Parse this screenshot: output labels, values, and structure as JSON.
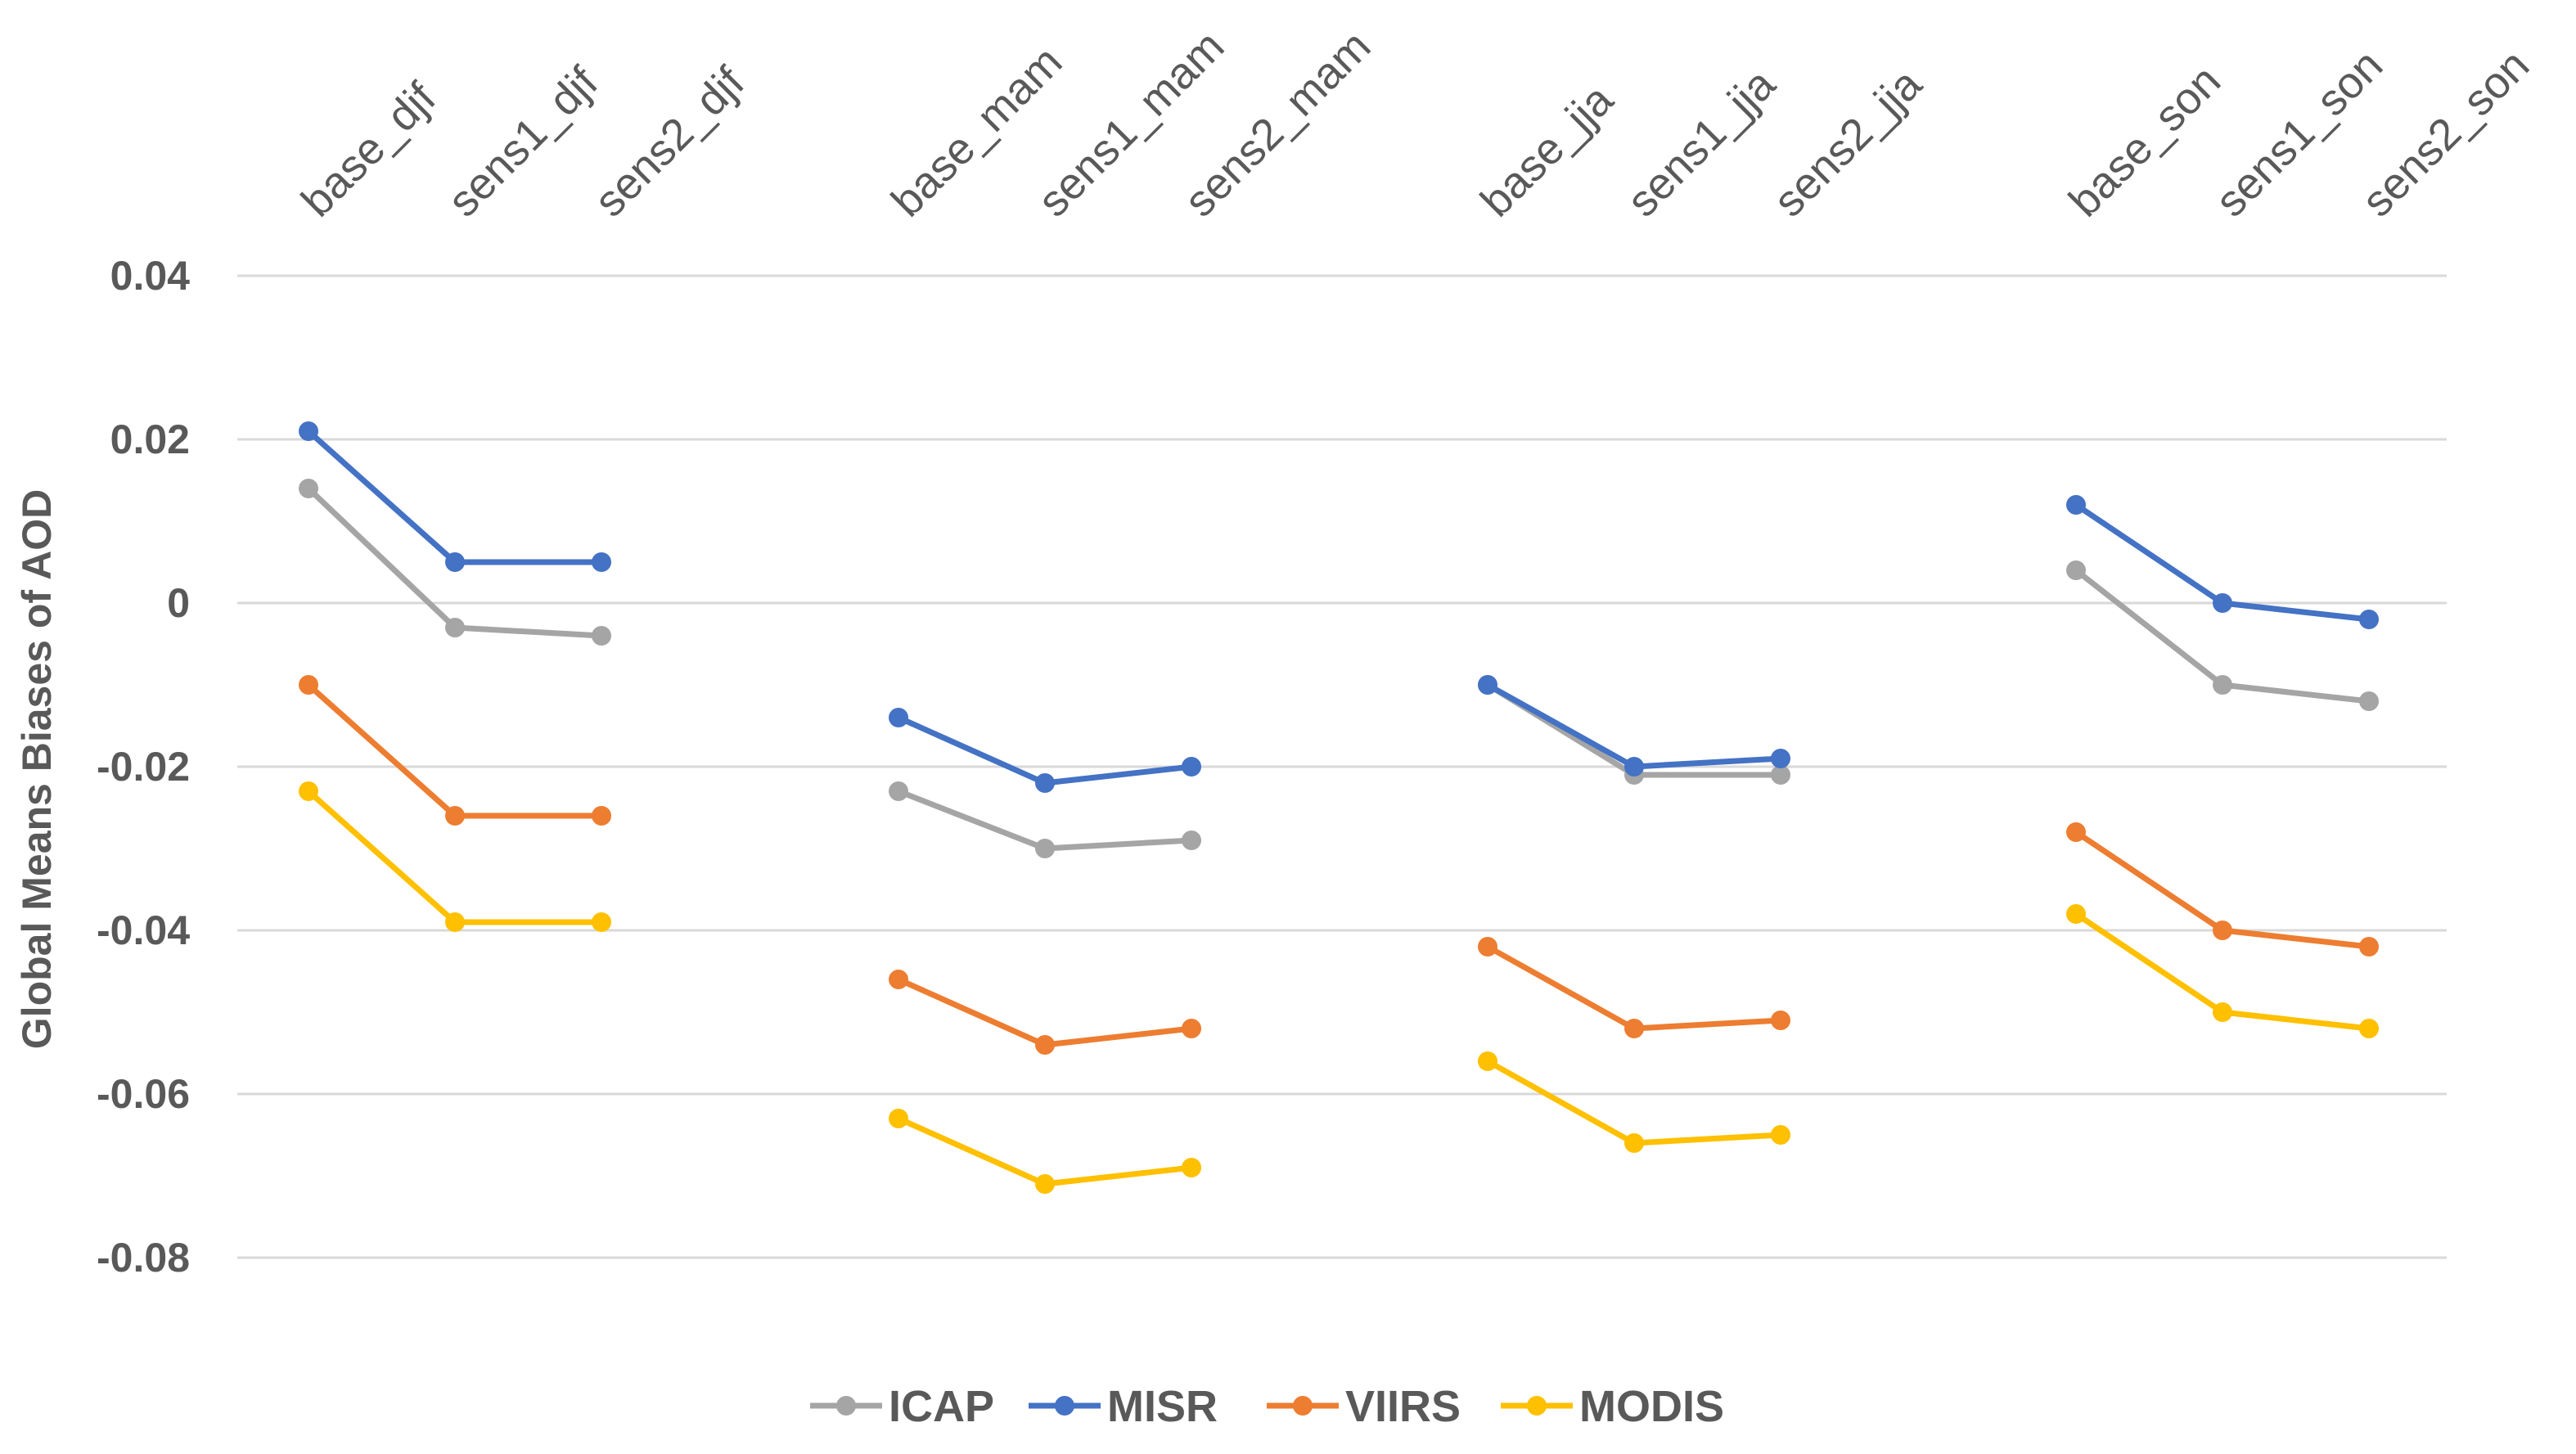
{
  "chart_data": {
    "type": "line",
    "title": "",
    "xlabel": "",
    "ylabel": "Global Means Biases of AOD",
    "ylim": [
      -0.08,
      0.04
    ],
    "yticks": [
      0.04,
      0.02,
      0,
      -0.02,
      -0.04,
      -0.06,
      -0.08
    ],
    "ytick_labels": [
      "0.04",
      "0.02",
      "0",
      "-0.02",
      "-0.04",
      "-0.06",
      "-0.08"
    ],
    "grid": true,
    "legend_position": "bottom",
    "categories": [
      "base_djf",
      "sens1_djf",
      "sens2_djf",
      "base_mam",
      "sens1_mam",
      "sens2_mam",
      "base_jja",
      "sens1_jja",
      "sens2_jja",
      "base_son",
      "sens1_son",
      "sens2_son"
    ],
    "groups": [
      [
        0,
        1,
        2
      ],
      [
        3,
        4,
        5
      ],
      [
        6,
        7,
        8
      ],
      [
        9,
        10,
        11
      ]
    ],
    "series": [
      {
        "name": "ICAP",
        "color": "#a5a5a5",
        "values": [
          0.014,
          -0.003,
          -0.004,
          -0.023,
          -0.03,
          -0.029,
          -0.01,
          -0.021,
          -0.021,
          0.004,
          -0.01,
          -0.012
        ]
      },
      {
        "name": "MISR",
        "color": "#4472c4",
        "values": [
          0.021,
          0.005,
          0.005,
          -0.014,
          -0.022,
          -0.02,
          -0.01,
          -0.02,
          -0.019,
          0.012,
          0.0,
          -0.002
        ]
      },
      {
        "name": "VIIRS",
        "color": "#ed7d31",
        "values": [
          -0.01,
          -0.026,
          -0.026,
          -0.046,
          -0.054,
          -0.052,
          -0.042,
          -0.052,
          -0.051,
          -0.028,
          -0.04,
          -0.042
        ]
      },
      {
        "name": "MODIS",
        "color": "#ffc000",
        "values": [
          -0.023,
          -0.039,
          -0.039,
          -0.063,
          -0.071,
          -0.069,
          -0.056,
          -0.066,
          -0.065,
          -0.038,
          -0.05,
          -0.052
        ]
      }
    ]
  }
}
